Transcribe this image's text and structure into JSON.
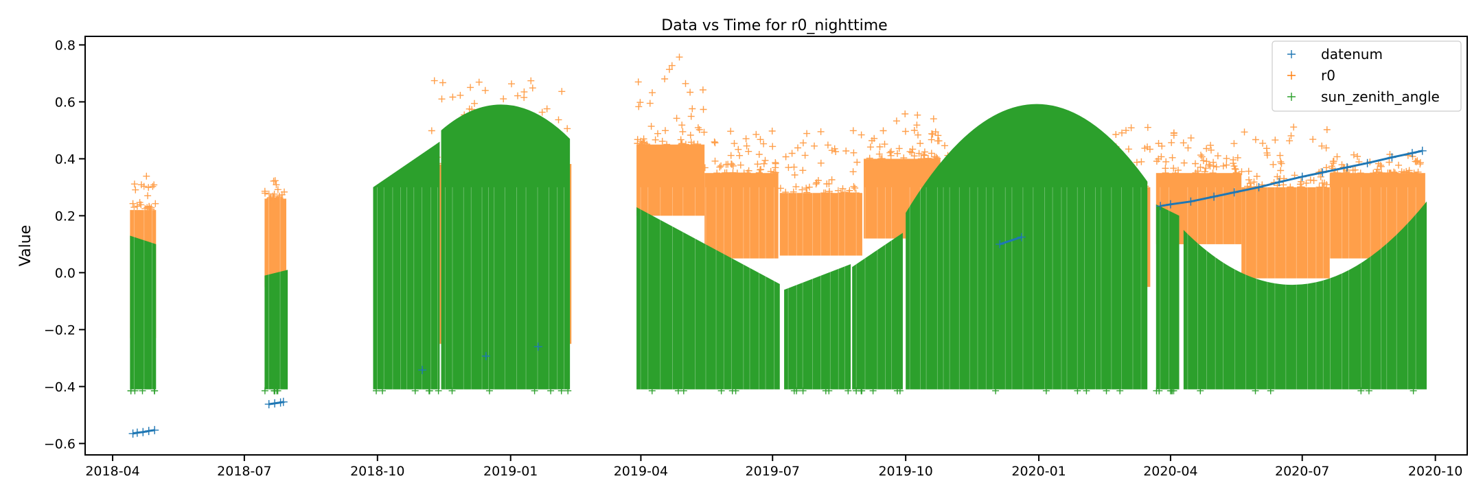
{
  "chart_data": {
    "type": "scatter",
    "title": "Data vs Time for r0_nighttime",
    "xlabel": "",
    "ylabel": "Value",
    "x_ticks": [
      "2018-04",
      "2018-07",
      "2018-10",
      "2019-01",
      "2019-04",
      "2019-07",
      "2019-10",
      "2020-01",
      "2020-04",
      "2020-07",
      "2020-10"
    ],
    "xlim": [
      "2018-03-13",
      "2020-10-23"
    ],
    "y_ticks": [
      "0.8",
      "0.6",
      "0.4",
      "0.2",
      "0.0",
      "−0.2",
      "−0.4",
      "−0.6"
    ],
    "ylim": [
      -0.64,
      0.83
    ],
    "marker": "+",
    "legend": {
      "placement": "top-right",
      "entries": [
        "datenum",
        "r0",
        "sun_zenith_angle"
      ]
    },
    "series": [
      {
        "name": "datenum",
        "color": "#1f77b4",
        "points": [
          [
            "2018-04-15",
            -0.565
          ],
          [
            "2018-04-18",
            -0.562
          ],
          [
            "2018-04-22",
            -0.56
          ],
          [
            "2018-04-26",
            -0.556
          ],
          [
            "2018-04-30",
            -0.553
          ],
          [
            "2018-07-18",
            -0.462
          ],
          [
            "2018-07-22",
            -0.459
          ],
          [
            "2018-07-26",
            -0.456
          ],
          [
            "2018-07-28",
            -0.454
          ],
          [
            "2018-11-01",
            -0.342
          ],
          [
            "2018-12-15",
            -0.293
          ],
          [
            "2019-01-20",
            -0.26
          ],
          [
            "2019-12-05",
            0.1
          ],
          [
            "2019-12-20",
            0.125
          ],
          [
            "2020-03-25",
            0.234
          ],
          [
            "2020-04-01",
            0.24
          ],
          [
            "2020-04-15",
            0.25
          ],
          [
            "2020-05-01",
            0.267
          ],
          [
            "2020-05-15",
            0.282
          ],
          [
            "2020-06-01",
            0.3
          ],
          [
            "2020-06-15",
            0.318
          ],
          [
            "2020-07-01",
            0.337
          ],
          [
            "2020-07-15",
            0.352
          ],
          [
            "2020-08-01",
            0.37
          ],
          [
            "2020-08-15",
            0.385
          ],
          [
            "2020-09-01",
            0.405
          ],
          [
            "2020-09-15",
            0.42
          ],
          [
            "2020-09-22",
            0.428
          ]
        ]
      },
      {
        "name": "r0",
        "color": "#ff7f0e",
        "segments": [
          {
            "start": "2018-04-13",
            "end": "2018-05-01",
            "low": -0.23,
            "high": 0.22,
            "max": 0.34
          },
          {
            "start": "2018-07-15",
            "end": "2018-07-30",
            "low": -0.05,
            "high": 0.26,
            "max": 0.33
          },
          {
            "start": "2018-10-01",
            "end": "2018-11-05",
            "low": -0.2,
            "high": 0.1,
            "max": 0.16
          },
          {
            "start": "2018-11-05",
            "end": "2019-02-12",
            "low": -0.25,
            "high": 0.38,
            "max": 0.68
          },
          {
            "start": "2019-03-29",
            "end": "2019-05-15",
            "low": 0.2,
            "high": 0.45,
            "max": 0.77
          },
          {
            "start": "2019-05-15",
            "end": "2019-07-05",
            "low": 0.05,
            "high": 0.35,
            "max": 0.51
          },
          {
            "start": "2019-07-06",
            "end": "2019-09-01",
            "low": 0.06,
            "high": 0.28,
            "max": 0.5
          },
          {
            "start": "2019-09-02",
            "end": "2019-10-25",
            "low": 0.12,
            "high": 0.4,
            "max": 0.57
          },
          {
            "start": "2019-10-25",
            "end": "2020-01-20",
            "low": -0.22,
            "high": 0.05,
            "max": 0.53
          },
          {
            "start": "2020-01-20",
            "end": "2020-03-18",
            "low": -0.05,
            "high": 0.3,
            "max": 0.53
          },
          {
            "start": "2020-03-22",
            "end": "2020-05-20",
            "low": 0.1,
            "high": 0.35,
            "max": 0.5
          },
          {
            "start": "2020-05-20",
            "end": "2020-07-20",
            "low": -0.02,
            "high": 0.3,
            "max": 0.53
          },
          {
            "start": "2020-07-20",
            "end": "2020-09-24",
            "low": 0.05,
            "high": 0.35,
            "max": 0.42
          }
        ]
      },
      {
        "name": "sun_zenith_angle",
        "color": "#2ca02c",
        "low": -0.41,
        "segments": [
          {
            "start": "2018-04-13",
            "end": "2018-05-01",
            "top_start": 0.13,
            "top_end": 0.1
          },
          {
            "start": "2018-07-15",
            "end": "2018-07-31",
            "top_start": -0.01,
            "top_end": 0.01
          },
          {
            "start": "2018-09-28",
            "end": "2018-11-13",
            "top_start": 0.3,
            "top_end": 0.46
          },
          {
            "start": "2018-11-14",
            "end": "2019-02-11",
            "top_start": 0.5,
            "top_end": 0.47,
            "top_mid": 0.59
          },
          {
            "start": "2019-03-29",
            "end": "2019-07-06",
            "top_start": 0.23,
            "top_end": -0.04
          },
          {
            "start": "2019-07-09",
            "end": "2019-08-24",
            "top_start": -0.06,
            "top_end": 0.03
          },
          {
            "start": "2019-08-25",
            "end": "2019-09-29",
            "top_start": 0.02,
            "top_end": 0.14
          },
          {
            "start": "2019-10-01",
            "end": "2020-03-16",
            "top_start": 0.21,
            "top_end": 0.32,
            "top_mid": 0.59
          },
          {
            "start": "2020-03-22",
            "end": "2020-04-07",
            "top_start": 0.24,
            "top_end": 0.2
          },
          {
            "start": "2020-04-10",
            "end": "2020-09-25",
            "top_start": 0.15,
            "top_end": 0.25,
            "top_mid": -0.04
          }
        ]
      }
    ]
  }
}
